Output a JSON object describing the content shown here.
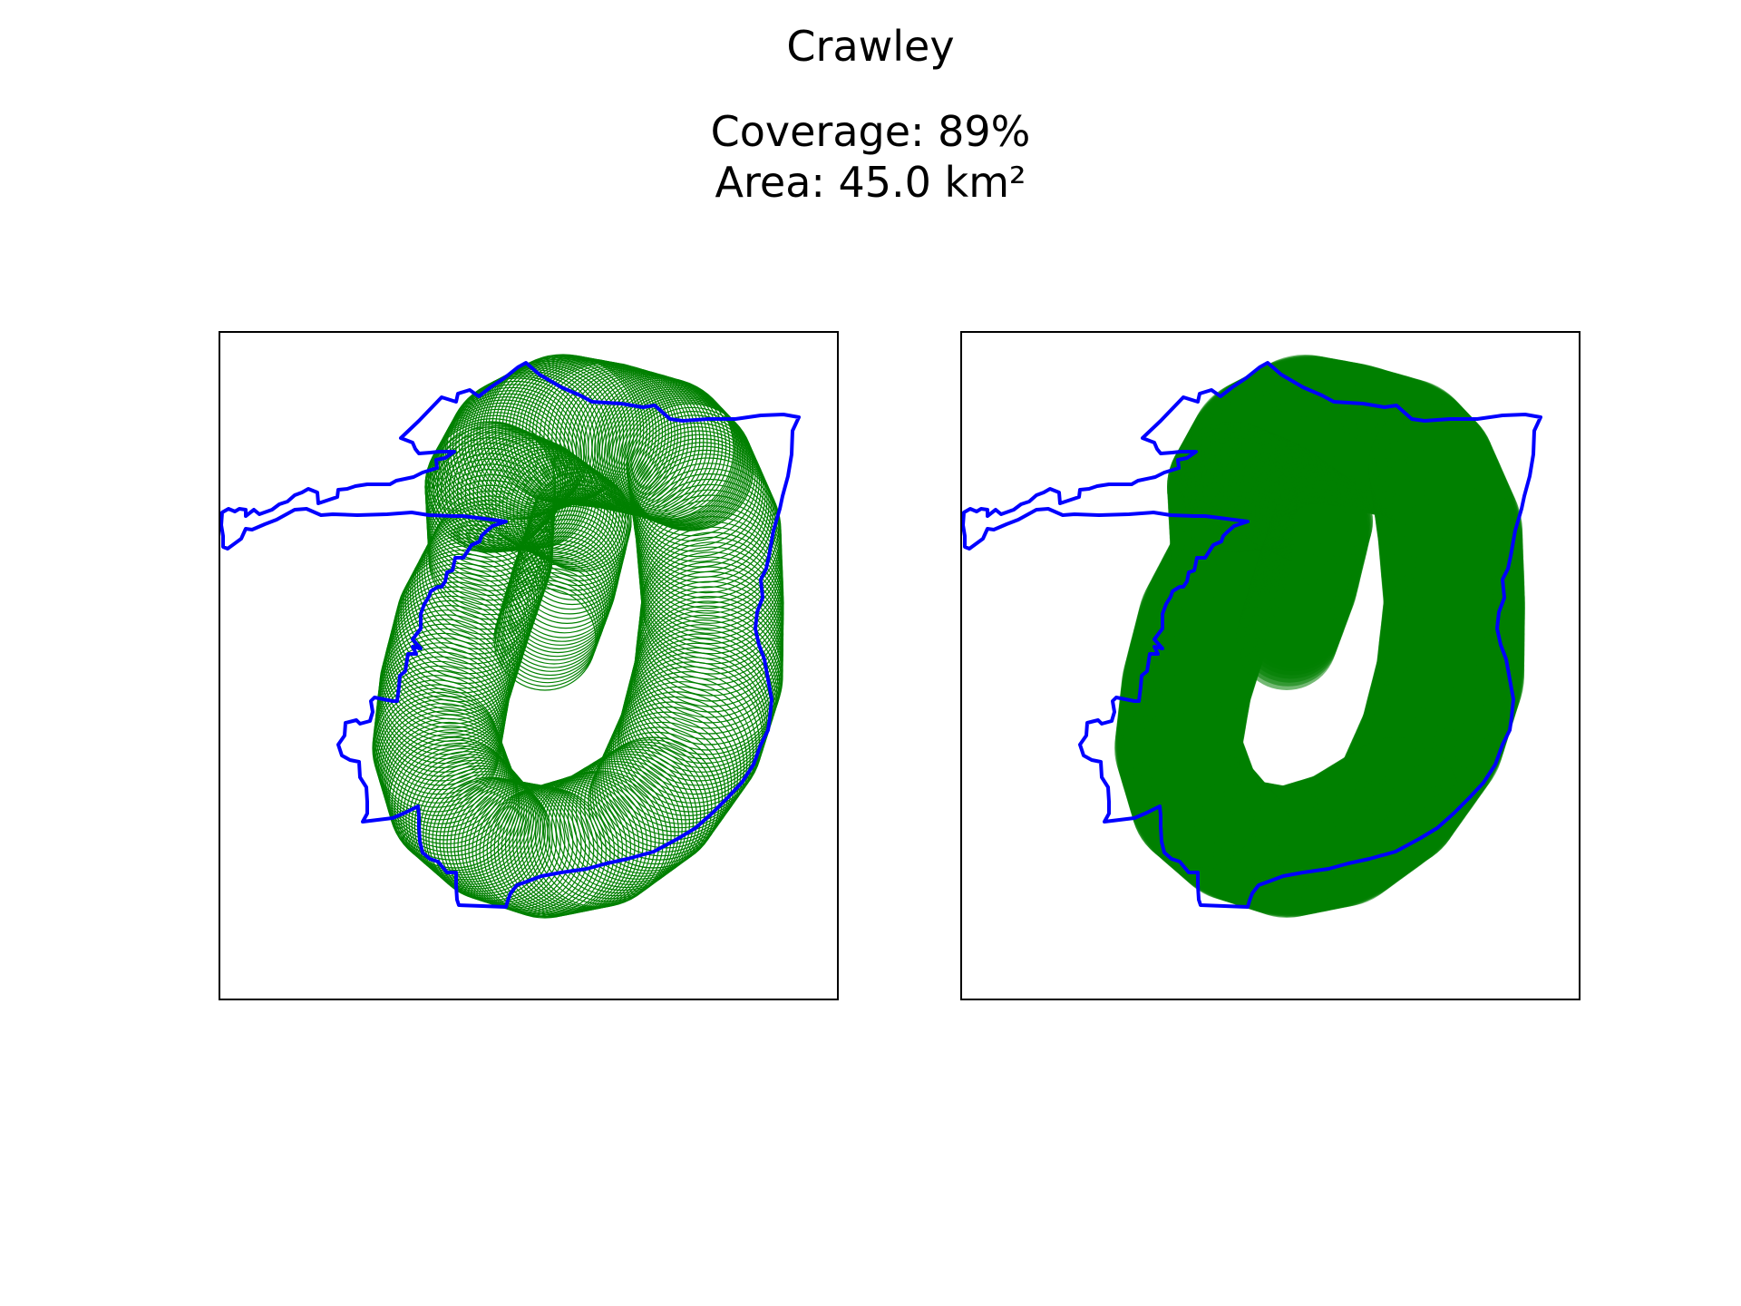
{
  "figure": {
    "title": "Crawley",
    "coverage_text": "Coverage: 89%",
    "area_text": "Area: 45.0 km²"
  },
  "colors": {
    "boundary": "#0000ff",
    "coverage": "#008000",
    "frame": "#000000",
    "background": "#ffffff"
  },
  "panels": [
    {
      "name": "coverage-outline-panel",
      "style": "outline-circles"
    },
    {
      "name": "coverage-filled-panel",
      "style": "filled-circles"
    }
  ]
}
